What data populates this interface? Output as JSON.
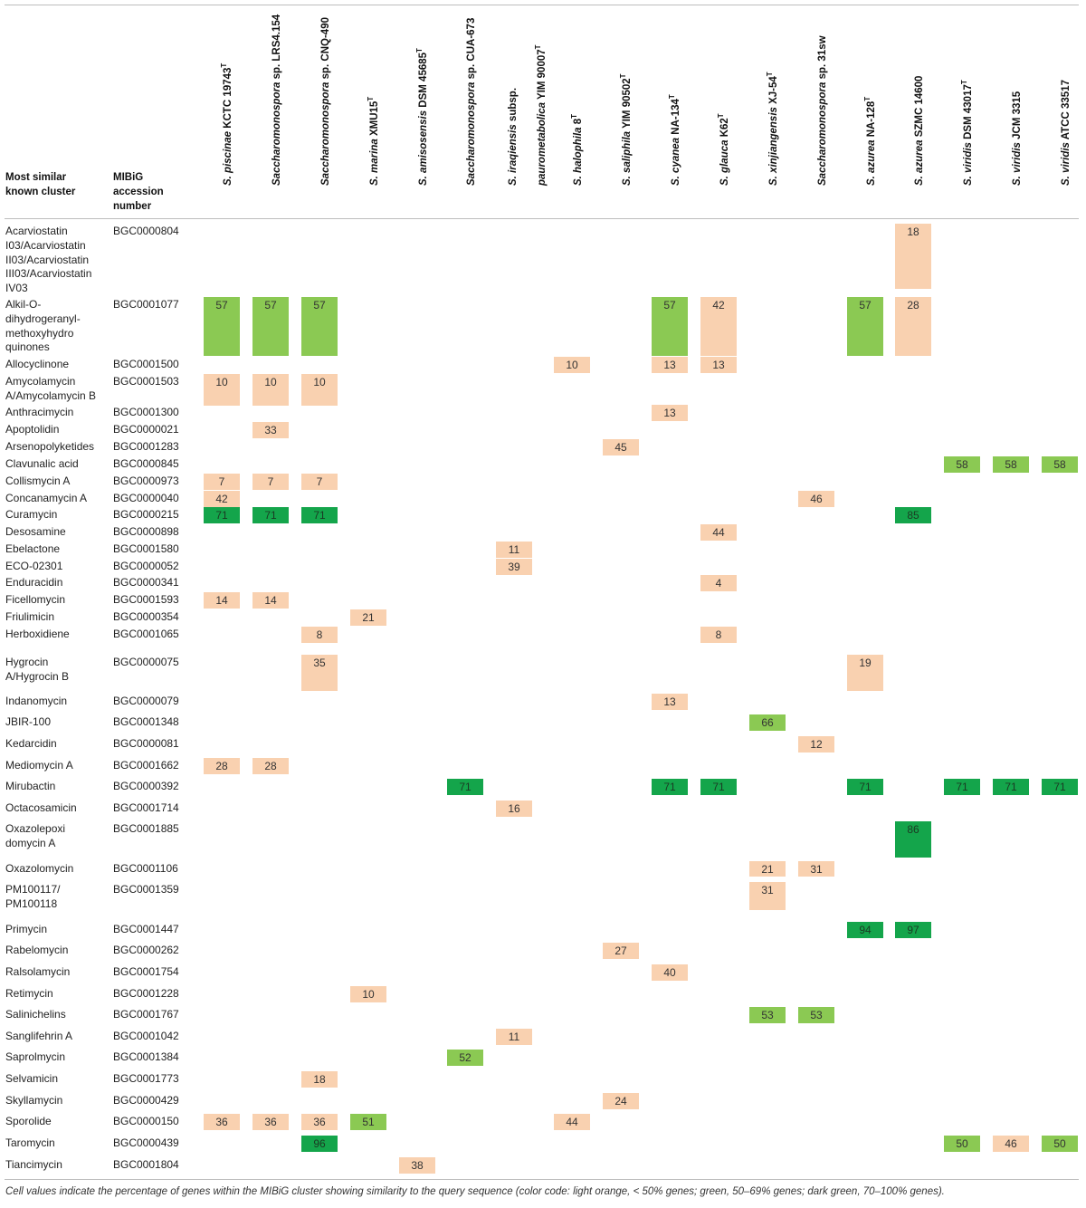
{
  "headers": {
    "cluster": "Most similar known cluster",
    "accession": "MIBiG accession number"
  },
  "columns": [
    {
      "line1_it": "S. piscinae",
      "line1_rest": " KCTC 19743",
      "sup": "T",
      "line2_it": "",
      "line2_rest": ""
    },
    {
      "line1_it": "Saccharomonospora",
      "line1_rest": " sp. LRS4.154",
      "sup": "",
      "line2_it": "",
      "line2_rest": ""
    },
    {
      "line1_it": "Saccharomonospora",
      "line1_rest": " sp. CNQ-490",
      "sup": "",
      "line2_it": "",
      "line2_rest": ""
    },
    {
      "line1_it": "S. marina",
      "line1_rest": " XMU15",
      "sup": "T",
      "line2_it": "",
      "line2_rest": ""
    },
    {
      "line1_it": "S. amisosensis",
      "line1_rest": " DSM 45685",
      "sup": "T",
      "line2_it": "",
      "line2_rest": ""
    },
    {
      "line1_it": "Saccharomonospora",
      "line1_rest": " sp. CUA-673",
      "sup": "",
      "line2_it": "",
      "line2_rest": ""
    },
    {
      "line1_it": "S. iraqiensis",
      "line1_rest": " subsp.",
      "sup": "",
      "line2_it": "paurometabolica",
      "line2_rest": " YIM 90007",
      "sup2": "T"
    },
    {
      "line1_it": "S. halophila",
      "line1_rest": " 8",
      "sup": "T",
      "line2_it": "",
      "line2_rest": ""
    },
    {
      "line1_it": "S. saliphila",
      "line1_rest": " YIM 90502",
      "sup": "T",
      "line2_it": "",
      "line2_rest": ""
    },
    {
      "line1_it": "S. cyanea",
      "line1_rest": " NA-134",
      "sup": "T",
      "line2_it": "",
      "line2_rest": ""
    },
    {
      "line1_it": "S. glauca",
      "line1_rest": " K62",
      "sup": "T",
      "line2_it": "",
      "line2_rest": ""
    },
    {
      "line1_it": "S. xinjiangensis",
      "line1_rest": " XJ-54",
      "sup": "T",
      "line2_it": "",
      "line2_rest": ""
    },
    {
      "line1_it": "Saccharomonospora",
      "line1_rest": " sp. 31sw",
      "sup": "",
      "line2_it": "",
      "line2_rest": ""
    },
    {
      "line1_it": "S. azurea",
      "line1_rest": " NA-128",
      "sup": "T",
      "line2_it": "",
      "line2_rest": ""
    },
    {
      "line1_it": "S. azurea",
      "line1_rest": " SZMC 14600",
      "sup": "",
      "line2_it": "",
      "line2_rest": ""
    },
    {
      "line1_it": "S. viridis",
      "line1_rest": " DSM 43017",
      "sup": "T",
      "line2_it": "",
      "line2_rest": ""
    },
    {
      "line1_it": "S. viridis",
      "line1_rest": " JCM 3315",
      "sup": "",
      "line2_it": "",
      "line2_rest": ""
    },
    {
      "line1_it": "S. viridis",
      "line1_rest": " ATCC 33517",
      "sup": "",
      "line2_it": "",
      "line2_rest": ""
    }
  ],
  "rows": [
    {
      "name": "Acarviostatin I03/Acarviostatin II03/Acarviostatin III03/Acarviostatin IV03",
      "acc": "BGC0000804",
      "cells": [
        {
          "c": 14,
          "v": "18",
          "k": "o"
        }
      ]
    },
    {
      "name": "Alkil-O-dihydrogeranyl-methoxyhydro quinones",
      "acc": "BGC0001077",
      "cells": [
        {
          "c": 0,
          "v": "57",
          "k": "g"
        },
        {
          "c": 1,
          "v": "57",
          "k": "g"
        },
        {
          "c": 2,
          "v": "57",
          "k": "g"
        },
        {
          "c": 9,
          "v": "57",
          "k": "g"
        },
        {
          "c": 10,
          "v": "42",
          "k": "o"
        },
        {
          "c": 13,
          "v": "57",
          "k": "g"
        },
        {
          "c": 14,
          "v": "28",
          "k": "o"
        }
      ]
    },
    {
      "name": "Allocyclinone",
      "acc": "BGC0001500",
      "cells": [
        {
          "c": 7,
          "v": "10",
          "k": "o"
        },
        {
          "c": 9,
          "v": "13",
          "k": "o"
        },
        {
          "c": 10,
          "v": "13",
          "k": "o"
        }
      ]
    },
    {
      "name": "Amycolamycin A/Amycolamycin B",
      "acc": "BGC0001503",
      "cells": [
        {
          "c": 0,
          "v": "10",
          "k": "o"
        },
        {
          "c": 1,
          "v": "10",
          "k": "o"
        },
        {
          "c": 2,
          "v": "10",
          "k": "o"
        }
      ]
    },
    {
      "name": "Anthracimycin",
      "acc": "BGC0001300",
      "cells": [
        {
          "c": 9,
          "v": "13",
          "k": "o"
        }
      ]
    },
    {
      "name": "Apoptolidin",
      "acc": "BGC0000021",
      "cells": [
        {
          "c": 1,
          "v": "33",
          "k": "o"
        }
      ]
    },
    {
      "name": "Arsenopolyketides",
      "acc": "BGC0001283",
      "cells": [
        {
          "c": 8,
          "v": "45",
          "k": "o"
        }
      ]
    },
    {
      "name": "Clavunalic acid",
      "acc": "BGC0000845",
      "cells": [
        {
          "c": 15,
          "v": "58",
          "k": "g"
        },
        {
          "c": 16,
          "v": "58",
          "k": "g"
        },
        {
          "c": 17,
          "v": "58",
          "k": "g"
        }
      ]
    },
    {
      "name": "Collismycin A",
      "acc": "BGC0000973",
      "cells": [
        {
          "c": 0,
          "v": "7",
          "k": "o"
        },
        {
          "c": 1,
          "v": "7",
          "k": "o"
        },
        {
          "c": 2,
          "v": "7",
          "k": "o"
        }
      ]
    },
    {
      "name": "Concanamycin A",
      "acc": "BGC0000040",
      "cells": [
        {
          "c": 0,
          "v": "42",
          "k": "o"
        },
        {
          "c": 12,
          "v": "46",
          "k": "o"
        }
      ]
    },
    {
      "name": "Curamycin",
      "acc": "BGC0000215",
      "cells": [
        {
          "c": 0,
          "v": "71",
          "k": "d"
        },
        {
          "c": 1,
          "v": "71",
          "k": "d"
        },
        {
          "c": 2,
          "v": "71",
          "k": "d"
        },
        {
          "c": 14,
          "v": "85",
          "k": "d"
        }
      ]
    },
    {
      "name": "Desosamine",
      "acc": "BGC0000898",
      "cells": [
        {
          "c": 10,
          "v": "44",
          "k": "o"
        }
      ]
    },
    {
      "name": "Ebelactone",
      "acc": "BGC0001580",
      "cells": [
        {
          "c": 6,
          "v": "11",
          "k": "o"
        }
      ]
    },
    {
      "name": "ECO-02301",
      "acc": "BGC0000052",
      "cells": [
        {
          "c": 6,
          "v": "39",
          "k": "o"
        }
      ]
    },
    {
      "name": "Enduracidin",
      "acc": "BGC0000341",
      "cells": [
        {
          "c": 10,
          "v": "4",
          "k": "o"
        }
      ]
    },
    {
      "name": "Ficellomycin",
      "acc": "BGC0001593",
      "cells": [
        {
          "c": 0,
          "v": "14",
          "k": "o"
        },
        {
          "c": 1,
          "v": "14",
          "k": "o"
        }
      ]
    },
    {
      "name": "Friulimicin",
      "acc": "BGC0000354",
      "cells": [
        {
          "c": 3,
          "v": "21",
          "k": "o"
        }
      ]
    },
    {
      "name": "Herboxidiene",
      "acc": "BGC0001065",
      "cells": [
        {
          "c": 2,
          "v": "8",
          "k": "o"
        },
        {
          "c": 10,
          "v": "8",
          "k": "o"
        }
      ]
    },
    {
      "name": "Hygrocin A/Hygrocin B",
      "acc": "BGC0000075",
      "cells": [
        {
          "c": 2,
          "v": "35",
          "k": "o"
        },
        {
          "c": 13,
          "v": "19",
          "k": "o"
        }
      ]
    },
    {
      "name": "Indanomycin",
      "acc": "BGC0000079",
      "cells": [
        {
          "c": 9,
          "v": "13",
          "k": "o"
        }
      ]
    },
    {
      "name": "JBIR-100",
      "acc": "BGC0001348",
      "cells": [
        {
          "c": 11,
          "v": "66",
          "k": "g"
        }
      ]
    },
    {
      "name": "Kedarcidin",
      "acc": "BGC0000081",
      "cells": [
        {
          "c": 12,
          "v": "12",
          "k": "o"
        }
      ]
    },
    {
      "name": "Mediomycin A",
      "acc": "BGC0001662",
      "cells": [
        {
          "c": 0,
          "v": "28",
          "k": "o"
        },
        {
          "c": 1,
          "v": "28",
          "k": "o"
        }
      ]
    },
    {
      "name": "Mirubactin",
      "acc": "BGC0000392",
      "cells": [
        {
          "c": 5,
          "v": "71",
          "k": "d"
        },
        {
          "c": 9,
          "v": "71",
          "k": "d"
        },
        {
          "c": 10,
          "v": "71",
          "k": "d"
        },
        {
          "c": 13,
          "v": "71",
          "k": "d"
        },
        {
          "c": 15,
          "v": "71",
          "k": "d"
        },
        {
          "c": 16,
          "v": "71",
          "k": "d"
        },
        {
          "c": 17,
          "v": "71",
          "k": "d"
        }
      ]
    },
    {
      "name": "Octacosamicin",
      "acc": "BGC0001714",
      "cells": [
        {
          "c": 6,
          "v": "16",
          "k": "o"
        }
      ]
    },
    {
      "name": "Oxazolepoxi domycin A",
      "acc": "BGC0001885",
      "cells": [
        {
          "c": 14,
          "v": "86",
          "k": "d"
        }
      ]
    },
    {
      "name": "Oxazolomycin",
      "acc": "BGC0001106",
      "cells": [
        {
          "c": 11,
          "v": "21",
          "k": "o"
        },
        {
          "c": 12,
          "v": "31",
          "k": "o"
        }
      ]
    },
    {
      "name": "PM100117/ PM100118",
      "acc": "BGC0001359",
      "cells": [
        {
          "c": 11,
          "v": "31",
          "k": "o"
        }
      ]
    },
    {
      "name": "Primycin",
      "acc": "BGC0001447",
      "cells": [
        {
          "c": 13,
          "v": "94",
          "k": "d"
        },
        {
          "c": 14,
          "v": "97",
          "k": "d"
        }
      ]
    },
    {
      "name": "Rabelomycin",
      "acc": "BGC0000262",
      "cells": [
        {
          "c": 8,
          "v": "27",
          "k": "o"
        }
      ]
    },
    {
      "name": "Ralsolamycin",
      "acc": "BGC0001754",
      "cells": [
        {
          "c": 9,
          "v": "40",
          "k": "o"
        }
      ]
    },
    {
      "name": "Retimycin",
      "acc": "BGC0001228",
      "cells": [
        {
          "c": 3,
          "v": "10",
          "k": "o"
        }
      ]
    },
    {
      "name": "Salinichelins",
      "acc": "BGC0001767",
      "cells": [
        {
          "c": 11,
          "v": "53",
          "k": "g"
        },
        {
          "c": 12,
          "v": "53",
          "k": "g"
        }
      ]
    },
    {
      "name": "Sanglifehrin A",
      "acc": "BGC0001042",
      "cells": [
        {
          "c": 6,
          "v": "11",
          "k": "o"
        }
      ]
    },
    {
      "name": "Saprolmycin",
      "acc": "BGC0001384",
      "cells": [
        {
          "c": 5,
          "v": "52",
          "k": "g"
        }
      ]
    },
    {
      "name": "Selvamicin",
      "acc": "BGC0001773",
      "cells": [
        {
          "c": 2,
          "v": "18",
          "k": "o"
        }
      ]
    },
    {
      "name": "Skyllamycin",
      "acc": "BGC0000429",
      "cells": [
        {
          "c": 8,
          "v": "24",
          "k": "o"
        }
      ]
    },
    {
      "name": "Sporolide",
      "acc": "BGC0000150",
      "cells": [
        {
          "c": 0,
          "v": "36",
          "k": "o"
        },
        {
          "c": 1,
          "v": "36",
          "k": "o"
        },
        {
          "c": 2,
          "v": "36",
          "k": "o"
        },
        {
          "c": 3,
          "v": "51",
          "k": "g"
        },
        {
          "c": 7,
          "v": "44",
          "k": "o"
        }
      ]
    },
    {
      "name": "Taromycin",
      "acc": "BGC0000439",
      "cells": [
        {
          "c": 2,
          "v": "96",
          "k": "d"
        },
        {
          "c": 15,
          "v": "50",
          "k": "g"
        },
        {
          "c": 16,
          "v": "46",
          "k": "o"
        },
        {
          "c": 17,
          "v": "50",
          "k": "g"
        }
      ]
    },
    {
      "name": "Tiancimycin",
      "acc": "BGC0001804",
      "cells": [
        {
          "c": 4,
          "v": "38",
          "k": "o"
        }
      ]
    }
  ],
  "colors": {
    "o": "#f9d1b0",
    "g": "#8bc953",
    "d": "#14a54b"
  },
  "footnote": "Cell values indicate the percentage of genes within the MIBiG cluster showing similarity to the query sequence (color code: light orange, < 50% genes; green, 50–69% genes; dark green, 70–100% genes)."
}
